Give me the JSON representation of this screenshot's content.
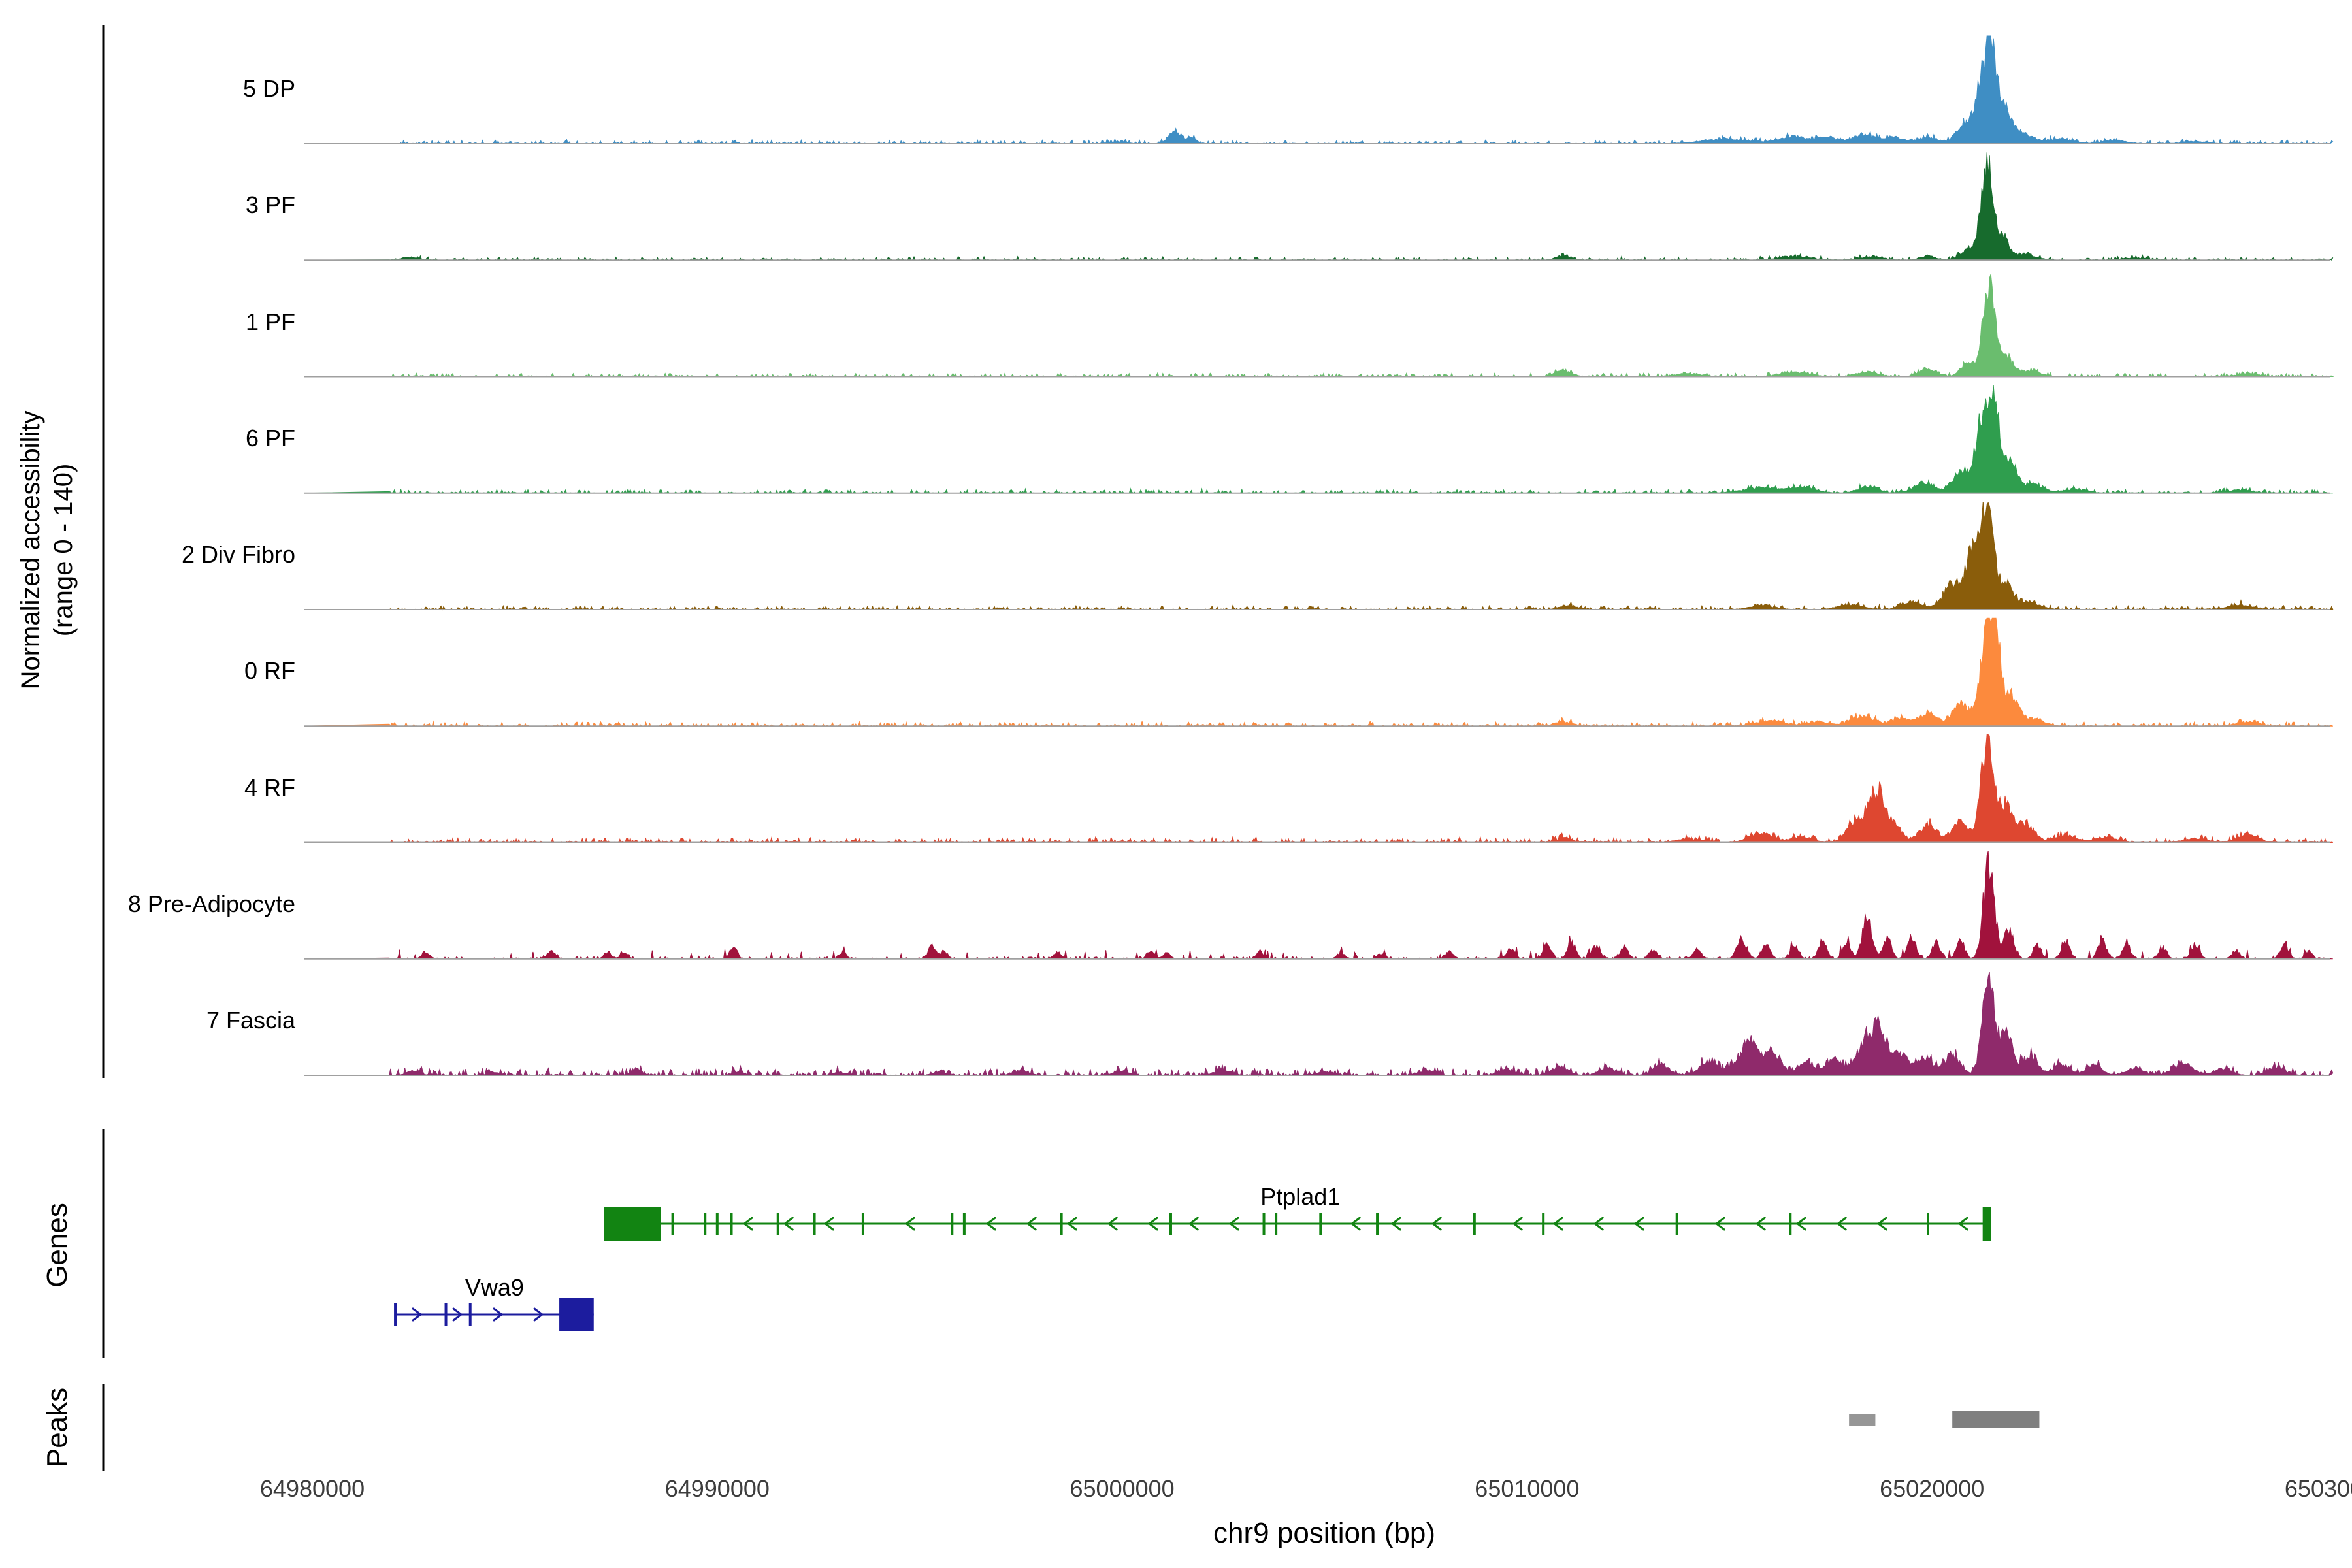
{
  "chart_data": {
    "type": "area",
    "title": "",
    "region_chrom": "chr9",
    "xlim": [
      64979500,
      65030700
    ],
    "ylim": [
      0,
      140
    ],
    "ylabel_line1": "Normalized accessibility",
    "ylabel_line2": "(range 0 - 140)",
    "x_axis": {
      "title": "chr9 position (bp)",
      "ticks": [
        64980000,
        64990000,
        65000000,
        65010000,
        65020000,
        65030000
      ],
      "tick_labels": [
        "64980000",
        "64990000",
        "65000000",
        "65010000",
        "65020000",
        "65030000"
      ]
    },
    "tracks": [
      {
        "label": "5 DP",
        "color": "#3f8ec4",
        "seed": 11,
        "noise": {
          "base": 1.2,
          "spike_prob": 0.015,
          "spike_max": 6
        },
        "peaks": [
          [
            65001300,
            160,
            16
          ],
          [
            65001700,
            120,
            8
          ],
          [
            64999900,
            200,
            3
          ],
          [
            65014900,
            600,
            6
          ],
          [
            65016600,
            350,
            10
          ],
          [
            65017400,
            250,
            8
          ],
          [
            65018300,
            300,
            12
          ],
          [
            65019100,
            250,
            8
          ],
          [
            65019900,
            250,
            9
          ],
          [
            65020800,
            200,
            25
          ],
          [
            65021200,
            150,
            70
          ],
          [
            65021450,
            130,
            140
          ],
          [
            65021800,
            180,
            45
          ],
          [
            65022300,
            250,
            12
          ],
          [
            65023200,
            300,
            6
          ],
          [
            65024500,
            300,
            4
          ],
          [
            65026500,
            300,
            3
          ]
        ]
      },
      {
        "label": "3 PF",
        "color": "#176b2d",
        "seed": 22,
        "noise": {
          "base": 1.0,
          "spike_prob": 0.012,
          "spike_max": 5
        },
        "peaks": [
          [
            64982400,
            200,
            4
          ],
          [
            65010900,
            180,
            6
          ],
          [
            65016600,
            400,
            5
          ],
          [
            65018500,
            300,
            4
          ],
          [
            65019900,
            200,
            5
          ],
          [
            65020900,
            180,
            15
          ],
          [
            65021350,
            140,
            140
          ],
          [
            65021750,
            160,
            30
          ],
          [
            65022300,
            250,
            8
          ],
          [
            65025000,
            300,
            3
          ]
        ]
      },
      {
        "label": "1 PF",
        "color": "#6abd6e",
        "seed": 33,
        "noise": {
          "base": 1.1,
          "spike_prob": 0.015,
          "spike_max": 5
        },
        "peaks": [
          [
            65010900,
            200,
            8
          ],
          [
            65014000,
            300,
            4
          ],
          [
            65016600,
            350,
            6
          ],
          [
            65018400,
            250,
            6
          ],
          [
            65019900,
            220,
            10
          ],
          [
            65020900,
            180,
            18
          ],
          [
            65021400,
            140,
            128
          ],
          [
            65021800,
            170,
            30
          ],
          [
            65022400,
            250,
            8
          ],
          [
            65027800,
            250,
            4
          ]
        ]
      },
      {
        "label": "6 PF",
        "color": "#2f9e4e",
        "seed": 44,
        "noise": {
          "base": 1.2,
          "spike_prob": 0.015,
          "spike_max": 6
        },
        "peaks": [
          [
            65015800,
            400,
            8
          ],
          [
            65016800,
            300,
            8
          ],
          [
            65018400,
            250,
            8
          ],
          [
            65019800,
            250,
            14
          ],
          [
            65020700,
            200,
            30
          ],
          [
            65021200,
            150,
            90
          ],
          [
            65021500,
            130,
            140
          ],
          [
            65021900,
            180,
            40
          ],
          [
            65022500,
            250,
            12
          ],
          [
            65023500,
            300,
            5
          ],
          [
            65027600,
            300,
            4
          ]
        ]
      },
      {
        "label": "2 Div Fibro",
        "color": "#8a5d0b",
        "seed": 55,
        "noise": {
          "base": 1.2,
          "spike_prob": 0.015,
          "spike_max": 6
        },
        "peaks": [
          [
            65011000,
            200,
            6
          ],
          [
            65015800,
            300,
            5
          ],
          [
            65018000,
            300,
            6
          ],
          [
            65019500,
            250,
            10
          ],
          [
            65020500,
            220,
            35
          ],
          [
            65021000,
            180,
            70
          ],
          [
            65021350,
            150,
            140
          ],
          [
            65021800,
            200,
            35
          ],
          [
            65022400,
            250,
            10
          ],
          [
            65027600,
            300,
            6
          ]
        ]
      },
      {
        "label": "0 RF",
        "color": "#fc8a3d",
        "seed": 66,
        "noise": {
          "base": 1.3,
          "spike_prob": 0.02,
          "spike_max": 6
        },
        "peaks": [
          [
            65010900,
            200,
            6
          ],
          [
            65016000,
            350,
            7
          ],
          [
            65017200,
            250,
            6
          ],
          [
            65018300,
            280,
            14
          ],
          [
            65019200,
            220,
            10
          ],
          [
            65019900,
            220,
            18
          ],
          [
            65020700,
            200,
            30
          ],
          [
            65021300,
            160,
            95
          ],
          [
            65021550,
            130,
            140
          ],
          [
            65021950,
            180,
            40
          ],
          [
            65022500,
            250,
            10
          ],
          [
            65027800,
            280,
            5
          ]
        ]
      },
      {
        "label": "4 RF",
        "color": "#de4730",
        "seed": 77,
        "noise": {
          "base": 1.5,
          "spike_prob": 0.025,
          "spike_max": 8
        },
        "peaks": [
          [
            65010900,
            200,
            6
          ],
          [
            65014000,
            300,
            5
          ],
          [
            65015800,
            300,
            12
          ],
          [
            65016800,
            250,
            8
          ],
          [
            65018100,
            200,
            30
          ],
          [
            65018600,
            180,
            72
          ],
          [
            65019000,
            200,
            25
          ],
          [
            65019900,
            220,
            22
          ],
          [
            65020700,
            200,
            28
          ],
          [
            65021350,
            150,
            140
          ],
          [
            65021800,
            170,
            50
          ],
          [
            65022300,
            220,
            25
          ],
          [
            65023300,
            250,
            10
          ],
          [
            65024300,
            250,
            8
          ],
          [
            65026500,
            300,
            5
          ],
          [
            65027800,
            250,
            10
          ]
        ]
      },
      {
        "label": "8 Pre-Adipocyte",
        "color": "#a1123c",
        "seed": 88,
        "noise": {
          "base": 0.8,
          "spike_prob": 0.04,
          "spike_max": 12
        },
        "peaks": [
          [
            64982800,
            100,
            8
          ],
          [
            64985900,
            100,
            10
          ],
          [
            64987300,
            90,
            9
          ],
          [
            64987700,
            90,
            8
          ],
          [
            64990400,
            90,
            16
          ],
          [
            64993100,
            90,
            8
          ],
          [
            64995300,
            90,
            18
          ],
          [
            64995600,
            90,
            10
          ],
          [
            64998400,
            90,
            9
          ],
          [
            65000700,
            90,
            10
          ],
          [
            65001100,
            90,
            8
          ],
          [
            65003400,
            90,
            9
          ],
          [
            65005400,
            90,
            8
          ],
          [
            65006400,
            90,
            7
          ],
          [
            65008100,
            90,
            10
          ],
          [
            65009600,
            100,
            14
          ],
          [
            65010500,
            100,
            18
          ],
          [
            65011100,
            100,
            20
          ],
          [
            65011700,
            100,
            18
          ],
          [
            65012400,
            100,
            16
          ],
          [
            65013100,
            100,
            12
          ],
          [
            65014200,
            100,
            12
          ],
          [
            65015300,
            120,
            25
          ],
          [
            65015900,
            100,
            20
          ],
          [
            65016600,
            100,
            18
          ],
          [
            65017300,
            100,
            22
          ],
          [
            65017900,
            100,
            20
          ],
          [
            65018400,
            120,
            55
          ],
          [
            65018900,
            100,
            25
          ],
          [
            65019500,
            100,
            30
          ],
          [
            65020100,
            100,
            22
          ],
          [
            65020700,
            100,
            25
          ],
          [
            65021400,
            130,
            140
          ],
          [
            65021900,
            120,
            40
          ],
          [
            65022600,
            100,
            18
          ],
          [
            65023300,
            100,
            22
          ],
          [
            65024200,
            100,
            25
          ],
          [
            65024800,
            100,
            18
          ],
          [
            65025700,
            100,
            15
          ],
          [
            65026500,
            100,
            20
          ],
          [
            65027500,
            100,
            12
          ],
          [
            65028700,
            100,
            20
          ],
          [
            65029300,
            90,
            10
          ]
        ]
      },
      {
        "label": "7 Fascia",
        "color": "#8f2a6b",
        "seed": 99,
        "noise": {
          "base": 2.2,
          "spike_prob": 0.04,
          "spike_max": 10
        },
        "peaks": [
          [
            64982500,
            150,
            6
          ],
          [
            64984500,
            150,
            4
          ],
          [
            64988000,
            150,
            6
          ],
          [
            64990500,
            120,
            5
          ],
          [
            64993000,
            150,
            4
          ],
          [
            64995500,
            150,
            5
          ],
          [
            64997500,
            200,
            5
          ],
          [
            65000000,
            200,
            5
          ],
          [
            65002500,
            200,
            7
          ],
          [
            65005000,
            200,
            5
          ],
          [
            65007500,
            200,
            6
          ],
          [
            65009500,
            200,
            8
          ],
          [
            65010800,
            200,
            12
          ],
          [
            65012000,
            200,
            10
          ],
          [
            65013300,
            200,
            14
          ],
          [
            65014500,
            250,
            18
          ],
          [
            65015500,
            250,
            45
          ],
          [
            65016100,
            200,
            25
          ],
          [
            65016900,
            200,
            18
          ],
          [
            65017600,
            200,
            20
          ],
          [
            65018300,
            200,
            40
          ],
          [
            65018700,
            180,
            65
          ],
          [
            65019200,
            180,
            30
          ],
          [
            65019800,
            200,
            25
          ],
          [
            65020500,
            200,
            28
          ],
          [
            65021400,
            150,
            140
          ],
          [
            65021850,
            150,
            55
          ],
          [
            65022400,
            200,
            25
          ],
          [
            65023200,
            200,
            15
          ],
          [
            65024000,
            200,
            12
          ],
          [
            65025000,
            200,
            10
          ],
          [
            65026200,
            250,
            14
          ],
          [
            65027200,
            200,
            10
          ],
          [
            65028500,
            200,
            12
          ]
        ]
      }
    ],
    "genes_section_label": "Genes",
    "genes": [
      {
        "name": "Ptplad1",
        "color": "#128412",
        "strand": "-",
        "start": 64987200,
        "end": 65021450,
        "label_pos": 65004400,
        "start_box": [
          64987200,
          64988600
        ],
        "end_box": [
          65021250,
          65021450
        ],
        "exon_ticks": [
          64988900,
          64989700,
          64990000,
          64990350,
          64991500,
          64992400,
          64993600,
          64995800,
          64996100,
          64998500,
          65001200,
          65003500,
          65003800,
          65004900,
          65006300,
          65008700,
          65010400,
          65013700,
          65016500,
          65019900
        ]
      },
      {
        "name": "Vwa9",
        "color": "#1c1c9e",
        "strand": "+",
        "start": 64982050,
        "end": 64986950,
        "label_pos": 64984500,
        "start_box": null,
        "end_box": [
          64986100,
          64986950
        ],
        "exon_ticks": [
          64982050,
          64983300,
          64983900
        ]
      }
    ],
    "peaks_section_label": "Peaks",
    "peaks": [
      {
        "start": 65017950,
        "end": 65018600,
        "color": "#969696",
        "size": "small"
      },
      {
        "start": 65020500,
        "end": 65022650,
        "color": "#7f7f7f",
        "size": "large"
      }
    ]
  }
}
